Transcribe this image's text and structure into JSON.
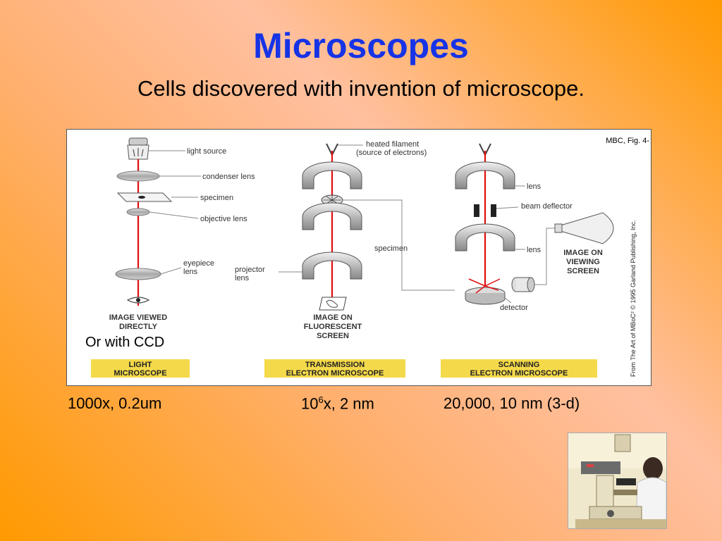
{
  "title": "Microscopes",
  "subtitle": "Cells discovered with invention of microscope.",
  "figure": {
    "ref": "MBC, Fig. 4-",
    "credit": "From The Art of MBoC² © 1995 Garland Publishing, Inc.",
    "ccd_note": "Or with CCD",
    "light": {
      "labels": {
        "light_source": "light source",
        "condenser": "condenser lens",
        "specimen": "specimen",
        "objective": "objective lens",
        "eyepiece_1": "eyepiece",
        "eyepiece_2": "lens",
        "image_1": "IMAGE VIEWED",
        "image_2": "DIRECTLY"
      },
      "banner_1": "LIGHT",
      "banner_2": "MICROSCOPE"
    },
    "tem": {
      "labels": {
        "filament_1": "heated filament",
        "filament_2": "(source of electrons)",
        "specimen": "specimen",
        "projector_1": "projector",
        "projector_2": "lens",
        "image_1": "IMAGE ON",
        "image_2": "FLUORESCENT",
        "image_3": "SCREEN"
      },
      "banner_1": "TRANSMISSION",
      "banner_2": "ELECTRON MICROSCOPE"
    },
    "sem": {
      "labels": {
        "lens_top": "lens",
        "deflector": "beam deflector",
        "lens_bottom": "lens",
        "detector": "detector",
        "screen_1": "IMAGE ON",
        "screen_2": "VIEWING",
        "screen_3": "SCREEN"
      },
      "banner_1": "SCANNING",
      "banner_2": "ELECTRON MICROSCOPE"
    }
  },
  "specs": {
    "light": "1000x, 0.2um",
    "tem_base": "10",
    "tem_exp": "6",
    "tem_rest": "x, 2 nm",
    "sem": "20,000, 10 nm (3-d)"
  },
  "colors": {
    "title": "#1633e6",
    "beam": "#e01010",
    "banner": "#f4d94a",
    "lens": "#b8b8b8"
  }
}
